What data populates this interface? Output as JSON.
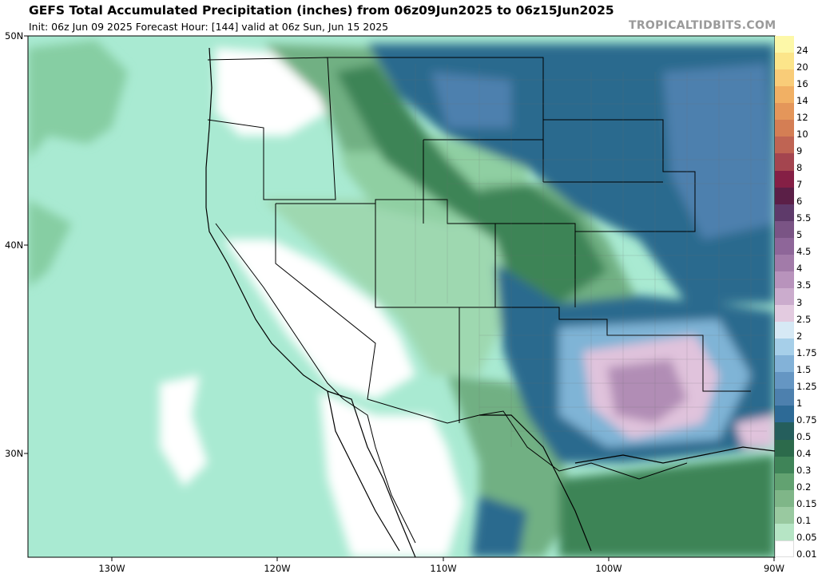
{
  "header": {
    "title": "GEFS Total Accumulated Precipitation (inches) from 06z09Jun2025 to 06z15Jun2025",
    "subtitle": "Init: 06z Jun 09 2025   Forecast Hour: [144]   valid at 06z Sun, Jun 15 2025",
    "brand": "TROPICALTIDBITS.COM"
  },
  "axes": {
    "lat_labels": [
      "50N",
      "40N",
      "30N"
    ],
    "lon_labels": [
      "130W",
      "120W",
      "110W",
      "100W",
      "90W"
    ]
  },
  "legend": {
    "values": [
      "24",
      "20",
      "16",
      "14",
      "12",
      "10",
      "9",
      "8",
      "7",
      "6",
      "5.5",
      "5",
      "4.5",
      "4",
      "3.5",
      "3",
      "2.5",
      "2",
      "1.75",
      "1.5",
      "1.25",
      "1",
      "0.75",
      "0.5",
      "0.4",
      "0.3",
      "0.2",
      "0.15",
      "0.1",
      "0.05",
      "0.01"
    ],
    "colors": [
      "#fdf8a8",
      "#fce58a",
      "#f9cc78",
      "#f1b064",
      "#e4965a",
      "#d47e54",
      "#bf6453",
      "#a4454f",
      "#851f45",
      "#5b1f47",
      "#5e3a6a",
      "#7a5485",
      "#8e6699",
      "#a27ba9",
      "#b893bc",
      "#cbaccd",
      "#e3cbe0",
      "#d6e9f5",
      "#a6cfe9",
      "#83b2d8",
      "#6596c3",
      "#4d80ae",
      "#2d6a96",
      "#255e5c",
      "#2c6a4b",
      "#3f8458",
      "#62a271",
      "#7fb688",
      "#99c9a0",
      "#b6e5c5",
      "#ffffff"
    ]
  },
  "colors": {
    "ocean_base": "#a9ead2",
    "light_green": "#9ed8b0",
    "mid_green": "#71b083",
    "dark_green": "#3e8456",
    "teal_blue": "#2a6b8e",
    "light_blue": "#7fb4d6",
    "pink": "#e0c3dc",
    "purple": "#b18db5"
  }
}
